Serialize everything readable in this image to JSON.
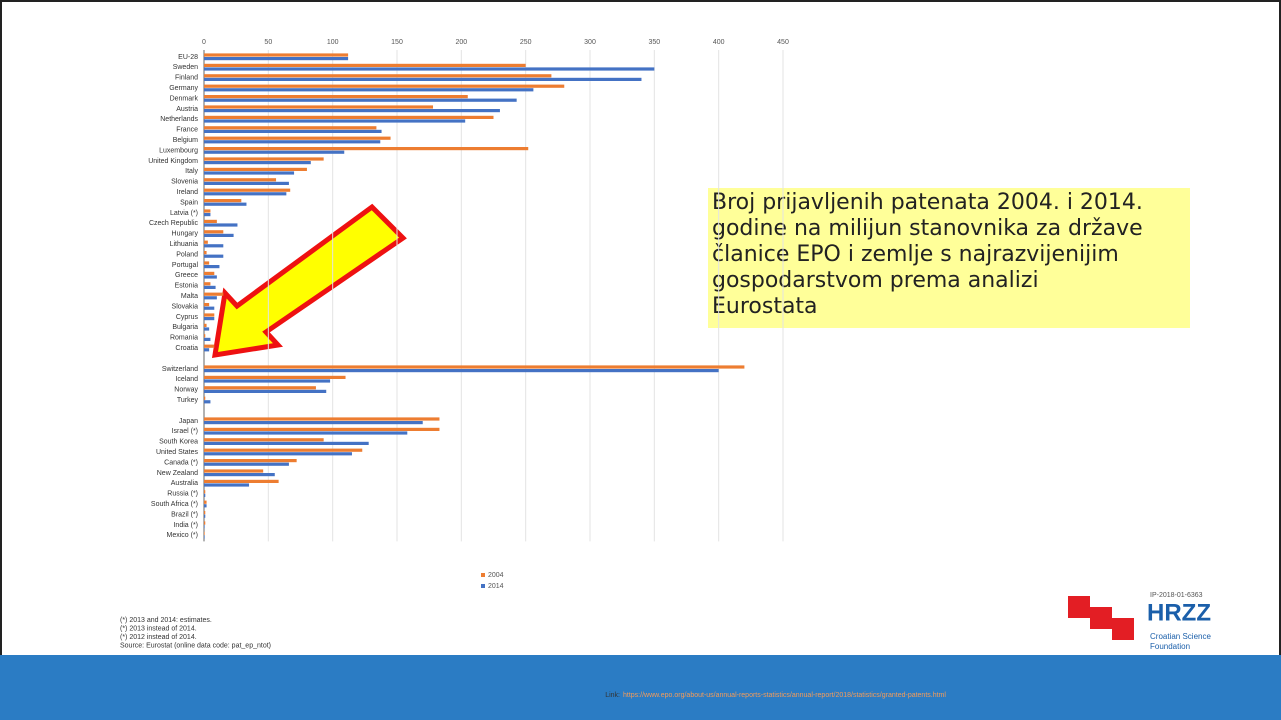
{
  "chart_data": {
    "type": "bar",
    "orientation": "horizontal",
    "categories": [
      "EU-28",
      "Sweden",
      "Finland",
      "Germany",
      "Denmark",
      "Austria",
      "Netherlands",
      "France",
      "Belgium",
      "Luxembourg",
      "United Kingdom",
      "Italy",
      "Slovenia",
      "Ireland",
      "Spain",
      "Latvia (*)",
      "Czech Republic",
      "Hungary",
      "Lithuania",
      "Poland",
      "Portugal",
      "Greece",
      "Estonia",
      "Malta",
      "Slovakia",
      "Cyprus",
      "Bulgaria",
      "Romania",
      "Croatia",
      null,
      "Switzerland",
      "Iceland",
      "Norway",
      "Turkey",
      null,
      "Japan",
      "Israel (*)",
      "South Korea",
      "United States",
      "Canada (*)",
      "New Zealand",
      "Australia",
      "Russia (*)",
      "South Africa (*)",
      "Brazil (*)",
      "India (*)",
      "Mexico (*)"
    ],
    "series": [
      {
        "name": "2004",
        "color": "#ed7d31",
        "values": [
          112,
          250,
          270,
          280,
          205,
          178,
          225,
          134,
          145,
          252,
          93,
          80,
          56,
          67,
          29,
          5,
          10,
          15,
          3,
          2,
          4,
          8,
          5,
          15,
          4,
          8,
          2,
          1,
          8,
          null,
          420,
          110,
          87,
          1,
          null,
          183,
          183,
          93,
          123,
          72,
          46,
          58,
          1,
          2,
          1,
          1,
          0.5
        ]
      },
      {
        "name": "2014",
        "color": "#4472c4",
        "values": [
          112,
          350,
          340,
          256,
          243,
          230,
          203,
          138,
          137,
          109,
          83,
          70,
          66,
          64,
          33,
          5,
          26,
          23,
          15,
          15,
          12,
          10,
          9,
          10,
          8,
          8,
          4,
          5,
          4,
          null,
          400,
          98,
          95,
          5,
          null,
          170,
          158,
          128,
          115,
          66,
          55,
          35,
          1,
          2,
          1,
          0.5,
          0.5
        ]
      }
    ],
    "xlim": [
      0,
      450
    ],
    "xticks": [
      0,
      50,
      100,
      150,
      200,
      250,
      300,
      350,
      400,
      450
    ],
    "grid": true
  },
  "slide": {
    "callout": [
      "Broj prijavljenih patenata 2004. i 2014.",
      "godine na milijun stanovnika za države",
      "članice EPO i zemlje s najrazvijenijim",
      "gospodarstvom prema analizi",
      "Eurostata"
    ],
    "footnotes": [
      "(*) 2013 and 2014: estimates.",
      "(*) 2013 instead of 2014.",
      "(*) 2012 instead of 2014.",
      "Source: Eurostat (online data code: pat_ep_ntot)"
    ],
    "link_label": "Link:",
    "link_url": "https://www.epo.org/about-us/annual-reports-statistics/annual-report/2018/statistics/granted-patents.html",
    "logo": {
      "project": "IP-2018-01-6363",
      "name": "HRZZ",
      "line1": "Croatian Science",
      "line2": "Foundation"
    }
  }
}
